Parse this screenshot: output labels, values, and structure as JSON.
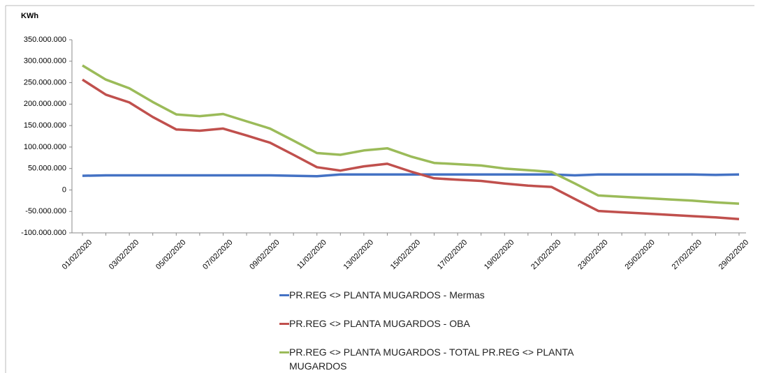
{
  "chart_data": {
    "type": "line",
    "y_label": "KWh",
    "categories": [
      "01/02/2020",
      null,
      "03/02/2020",
      null,
      "05/02/2020",
      null,
      "07/02/2020",
      null,
      "09/02/2020",
      null,
      "11/02/2020",
      null,
      "13/02/2020",
      null,
      "15/02/2020",
      null,
      "17/02/2020",
      null,
      "19/02/2020",
      null,
      "21/02/2020",
      null,
      "23/02/2020",
      null,
      "25/02/2020",
      null,
      "27/02/2020",
      null,
      "29/02/2020"
    ],
    "series": [
      {
        "name": "PR.REG <> PLANTA MUGARDOS - Mermas",
        "color": "#4472c4",
        "values": [
          33000000,
          34000000,
          34000000,
          34000000,
          34000000,
          34000000,
          34000000,
          34000000,
          34000000,
          33000000,
          32000000,
          36000000,
          36000000,
          36000000,
          36000000,
          36000000,
          36000000,
          36000000,
          36000000,
          36000000,
          36000000,
          34000000,
          36000000,
          36000000,
          36000000,
          36000000,
          36000000,
          35000000,
          36000000
        ]
      },
      {
        "name": "PR.REG <> PLANTA MUGARDOS - OBA",
        "color": "#c0504d",
        "values": [
          257000000,
          222000000,
          204000000,
          170000000,
          141000000,
          138000000,
          143000000,
          127000000,
          110000000,
          82000000,
          53000000,
          45000000,
          55000000,
          61000000,
          43000000,
          27000000,
          24000000,
          21000000,
          15000000,
          10000000,
          7000000,
          -21000000,
          -49000000,
          -52000000,
          -55000000,
          -58000000,
          -61000000,
          -64000000,
          -68000000
        ]
      },
      {
        "name": "PR.REG <> PLANTA MUGARDOS - TOTAL PR.REG <> PLANTA MUGARDOS",
        "color": "#9bbb59",
        "values": [
          290000000,
          257000000,
          237000000,
          205000000,
          176000000,
          172000000,
          177000000,
          160000000,
          143000000,
          115000000,
          86000000,
          82000000,
          92000000,
          97000000,
          78000000,
          63000000,
          60000000,
          57000000,
          50000000,
          46000000,
          42000000,
          15000000,
          -13000000,
          -16000000,
          -19000000,
          -22000000,
          -25000000,
          -29000000,
          -32000000
        ]
      }
    ],
    "ylim": [
      -100000000,
      350000000
    ],
    "yticks": [
      {
        "value": -100000000,
        "label": "-100.000.000"
      },
      {
        "value": -50000000,
        "label": "-50.000.000"
      },
      0,
      {
        "value": 50000000,
        "label": "50.000.000"
      },
      {
        "value": 100000000,
        "label": "100.000.000"
      },
      {
        "value": 150000000,
        "label": "150.000.000"
      },
      {
        "value": 200000000,
        "label": "200.000.000"
      },
      {
        "value": 250000000,
        "label": "250.000.000"
      },
      {
        "value": 300000000,
        "label": "300.000.000"
      },
      {
        "value": 350000000,
        "label": "350.000.000"
      }
    ],
    "grid": false
  }
}
